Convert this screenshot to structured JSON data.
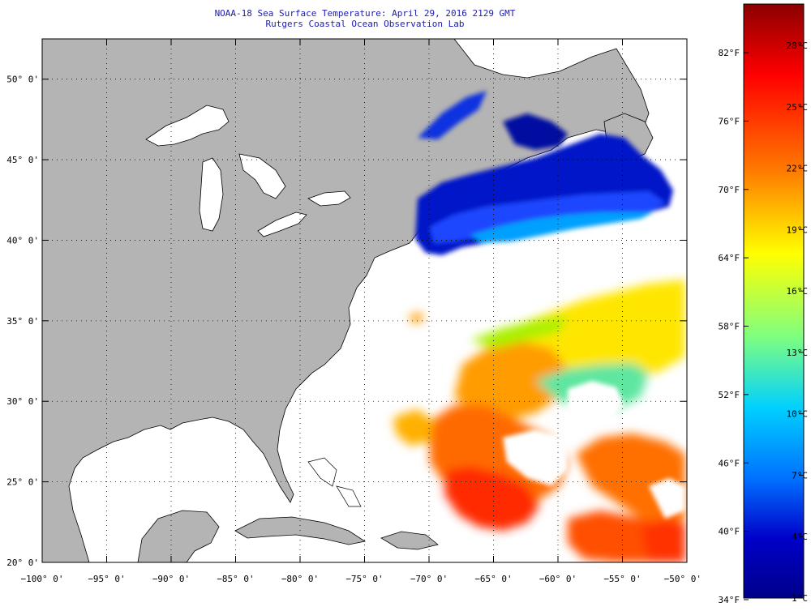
{
  "title": "NOAA-18 Sea Surface Temperature:  April 29, 2016 2129 GMT",
  "subtitle": "Rutgers Coastal Ocean Observation Lab",
  "map": {
    "lon_range": [
      -100,
      -50
    ],
    "lat_range": [
      20,
      52.5
    ],
    "grid": "dotted",
    "lat_labels": [
      "20° 0'",
      "25° 0'",
      "30° 0'",
      "35° 0'",
      "40° 0'",
      "45° 0'",
      "50° 0'"
    ],
    "lon_labels": [
      "−100° 0'",
      "−95° 0'",
      "−90° 0'",
      "−85° 0'",
      "−80° 0'",
      "−75° 0'",
      "−70° 0'",
      "−65° 0'",
      "−60° 0'",
      "−55° 0'",
      "−50° 0'"
    ],
    "colors": {
      "land": "#b4b4b4",
      "water": "#ffffff",
      "coast": "#000000",
      "grid": "#000000"
    }
  },
  "colorbar": {
    "celsius_labels": [
      "28°C",
      "25°C",
      "22°C",
      "19°C",
      "16°C",
      "13°C",
      "10°C",
      "7°C",
      "4°C",
      "1°C"
    ],
    "fahrenheit_labels": [
      "82°F",
      "76°F",
      "70°F",
      "64°F",
      "58°F",
      "52°F",
      "46°F",
      "40°F",
      "34°F"
    ],
    "scale_colors": [
      "#8b0000",
      "#ff0000",
      "#ff7a00",
      "#ffff00",
      "#7fff7f",
      "#00d0ff",
      "#0070ff",
      "#0000c8",
      "#00008b"
    ]
  }
}
